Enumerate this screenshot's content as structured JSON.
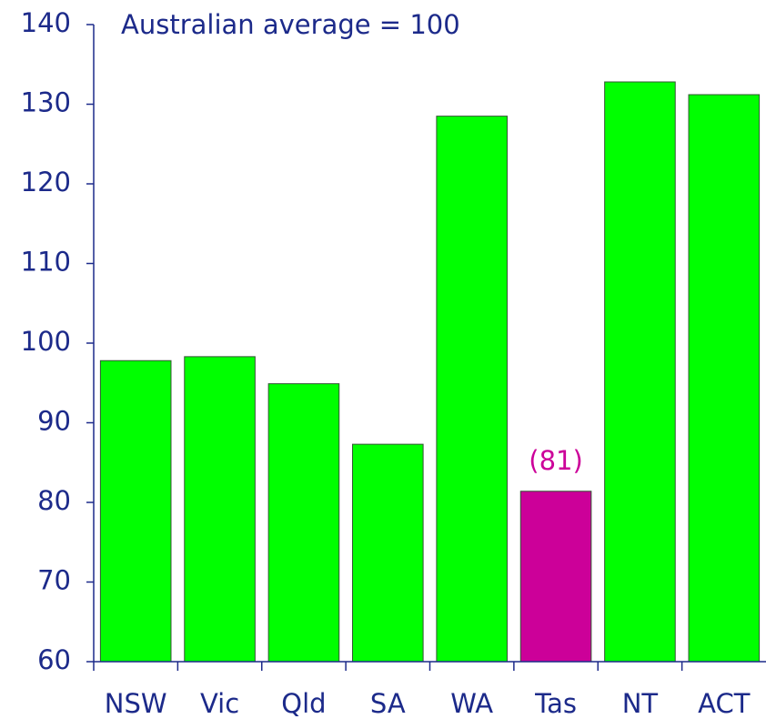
{
  "chart_data": {
    "type": "bar",
    "title": "Australian average = 100",
    "categories": [
      "NSW",
      "Vic",
      "Qld",
      "SA",
      "WA",
      "Tas",
      "NT",
      "ACT"
    ],
    "values": [
      97.8,
      98.3,
      94.9,
      87.3,
      128.5,
      81.4,
      132.8,
      131.2
    ],
    "value_labels": [
      null,
      null,
      null,
      null,
      null,
      "(81)",
      null,
      null
    ],
    "colors": [
      "#00ff00",
      "#00ff00",
      "#00ff00",
      "#00ff00",
      "#00ff00",
      "#cc0099",
      "#00ff00",
      "#00ff00"
    ],
    "ylim": [
      60,
      140
    ],
    "yticks": [
      60,
      70,
      80,
      90,
      100,
      110,
      120,
      130,
      140
    ],
    "grid": false
  }
}
